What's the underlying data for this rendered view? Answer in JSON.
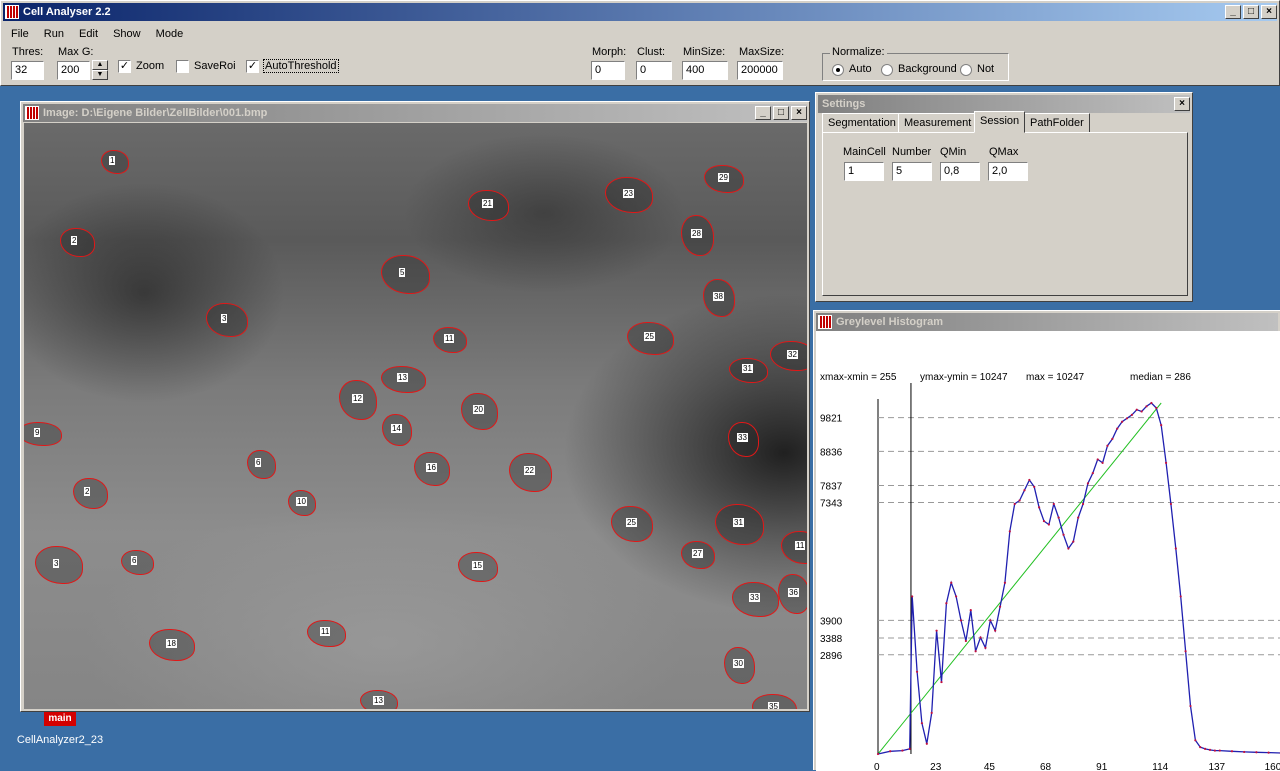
{
  "app": {
    "title": "Cell Analyser 2.2"
  },
  "menu": [
    "File",
    "Run",
    "Edit",
    "Show",
    "Mode"
  ],
  "toolbar": {
    "thres_label": "Thres:",
    "thres_value": "32",
    "maxg_label": "Max G:",
    "maxg_value": "200",
    "zoom_label": "Zoom",
    "zoom_checked": true,
    "saveroi_label": "SaveRoi",
    "saveroi_checked": false,
    "autothreshold_label": "AutoThreshold",
    "autothreshold_checked": true,
    "morph_label": "Morph:",
    "morph_value": "0",
    "clust_label": "Clust:",
    "clust_value": "0",
    "minsize_label": "MinSize:",
    "minsize_value": "400",
    "maxsize_label": "MaxSize:",
    "maxsize_value": "200000",
    "normalize_label": "Normalize:",
    "normalize_options": [
      "Auto",
      "Background",
      "Not"
    ],
    "normalize_selected": "Auto"
  },
  "image_window": {
    "title": "Image: D:\\Eigene Bilder\\ZellBilder\\001.bmp",
    "cells": [
      {
        "n": "1",
        "x": 113,
        "y": 160
      },
      {
        "n": "2",
        "x": 75,
        "y": 240
      },
      {
        "n": "3",
        "x": 225,
        "y": 318
      },
      {
        "n": "5",
        "x": 403,
        "y": 272
      },
      {
        "n": "11",
        "x": 448,
        "y": 338
      },
      {
        "n": "21",
        "x": 486,
        "y": 203
      },
      {
        "n": "23",
        "x": 627,
        "y": 193
      },
      {
        "n": "28",
        "x": 695,
        "y": 233
      },
      {
        "n": "29",
        "x": 722,
        "y": 177
      },
      {
        "n": "25",
        "x": 648,
        "y": 336
      },
      {
        "n": "38",
        "x": 717,
        "y": 296
      },
      {
        "n": "31",
        "x": 746,
        "y": 368
      },
      {
        "n": "32",
        "x": 791,
        "y": 354
      },
      {
        "n": "33",
        "x": 741,
        "y": 437
      },
      {
        "n": "12",
        "x": 356,
        "y": 398
      },
      {
        "n": "13",
        "x": 401,
        "y": 377
      },
      {
        "n": "14",
        "x": 395,
        "y": 428
      },
      {
        "n": "20",
        "x": 477,
        "y": 409
      },
      {
        "n": "9",
        "x": 38,
        "y": 432
      },
      {
        "n": "6",
        "x": 259,
        "y": 462
      },
      {
        "n": "16",
        "x": 430,
        "y": 467
      },
      {
        "n": "22",
        "x": 528,
        "y": 470
      },
      {
        "n": "10",
        "x": 300,
        "y": 501
      },
      {
        "n": "2",
        "x": 88,
        "y": 491
      },
      {
        "n": "25",
        "x": 630,
        "y": 522
      },
      {
        "n": "31",
        "x": 737,
        "y": 522
      },
      {
        "n": "27",
        "x": 696,
        "y": 553
      },
      {
        "n": "11",
        "x": 799,
        "y": 545
      },
      {
        "n": "3",
        "x": 57,
        "y": 563
      },
      {
        "n": "6",
        "x": 135,
        "y": 560
      },
      {
        "n": "15",
        "x": 476,
        "y": 565
      },
      {
        "n": "33",
        "x": 753,
        "y": 597
      },
      {
        "n": "36",
        "x": 792,
        "y": 592
      },
      {
        "n": "11",
        "x": 324,
        "y": 631
      },
      {
        "n": "18",
        "x": 170,
        "y": 643
      },
      {
        "n": "30",
        "x": 737,
        "y": 663
      },
      {
        "n": "13",
        "x": 377,
        "y": 700
      },
      {
        "n": "35",
        "x": 772,
        "y": 706
      }
    ]
  },
  "settings": {
    "title": "Settings",
    "tabs": [
      "Segmentation",
      "Measurement",
      "Session",
      "PathFolder"
    ],
    "selected_tab": "Session",
    "fields": [
      {
        "label": "MainCell",
        "value": "1"
      },
      {
        "label": "Number",
        "value": "5"
      },
      {
        "label": "QMin",
        "value": "0,8"
      },
      {
        "label": "QMax",
        "value": "2,0"
      }
    ]
  },
  "histogram": {
    "title": "Greylevel Histogram",
    "xrange_text": "xmax-xmin = 255",
    "yrange_text": "ymax-ymin = 10247",
    "max_text": "max = 10247",
    "median_text": "median = 286",
    "y_ticks": [
      "9821",
      "8836",
      "7837",
      "7343",
      "3900",
      "3388",
      "2896"
    ],
    "x_ticks": [
      "0",
      "23",
      "45",
      "68",
      "91",
      "114",
      "137",
      "160"
    ]
  },
  "chart_data": {
    "type": "line",
    "title": "",
    "xlabel": "",
    "ylabel": "",
    "xlim": [
      0,
      170
    ],
    "ylim": [
      0,
      10247
    ],
    "guide_lines": [
      9821,
      8836,
      7837,
      7343,
      3900,
      3388,
      2896
    ],
    "series": [
      {
        "x": [
          0,
          5,
          10,
          13,
          14,
          16,
          18,
          20,
          22,
          24,
          26,
          28,
          30,
          32,
          34,
          36,
          38,
          40,
          42,
          44,
          46,
          48,
          50,
          52,
          54,
          56,
          58,
          60,
          62,
          64,
          66,
          68,
          70,
          72,
          74,
          76,
          78,
          80,
          82,
          84,
          86,
          88,
          90,
          92,
          94,
          96,
          98,
          100,
          102,
          104,
          106,
          108,
          110,
          112,
          114,
          116,
          118,
          120,
          122,
          124,
          126,
          128,
          130,
          132,
          134,
          136,
          138,
          140,
          145,
          150,
          155,
          160,
          165,
          170
        ],
        "values": [
          0,
          80,
          100,
          150,
          4600,
          2400,
          900,
          300,
          1200,
          3600,
          2100,
          4400,
          5000,
          4600,
          3900,
          3300,
          4200,
          3000,
          3400,
          3100,
          3900,
          3600,
          4300,
          5000,
          6500,
          7300,
          7400,
          7700,
          8000,
          7800,
          7200,
          6800,
          6700,
          7300,
          6900,
          6400,
          6000,
          6200,
          6900,
          7300,
          7900,
          8200,
          8600,
          8500,
          9000,
          9200,
          9500,
          9700,
          9800,
          9900,
          10050,
          10000,
          10150,
          10247,
          10100,
          9600,
          8500,
          7300,
          6000,
          4600,
          3000,
          1400,
          400,
          200,
          150,
          120,
          100,
          100,
          80,
          60,
          50,
          40,
          30,
          20
        ]
      },
      {
        "x": [
          0,
          116
        ],
        "values": [
          0,
          10247
        ]
      }
    ]
  },
  "desktop": {
    "icon_label": "CellAnalyzer2_23",
    "icon_badge": "main"
  }
}
